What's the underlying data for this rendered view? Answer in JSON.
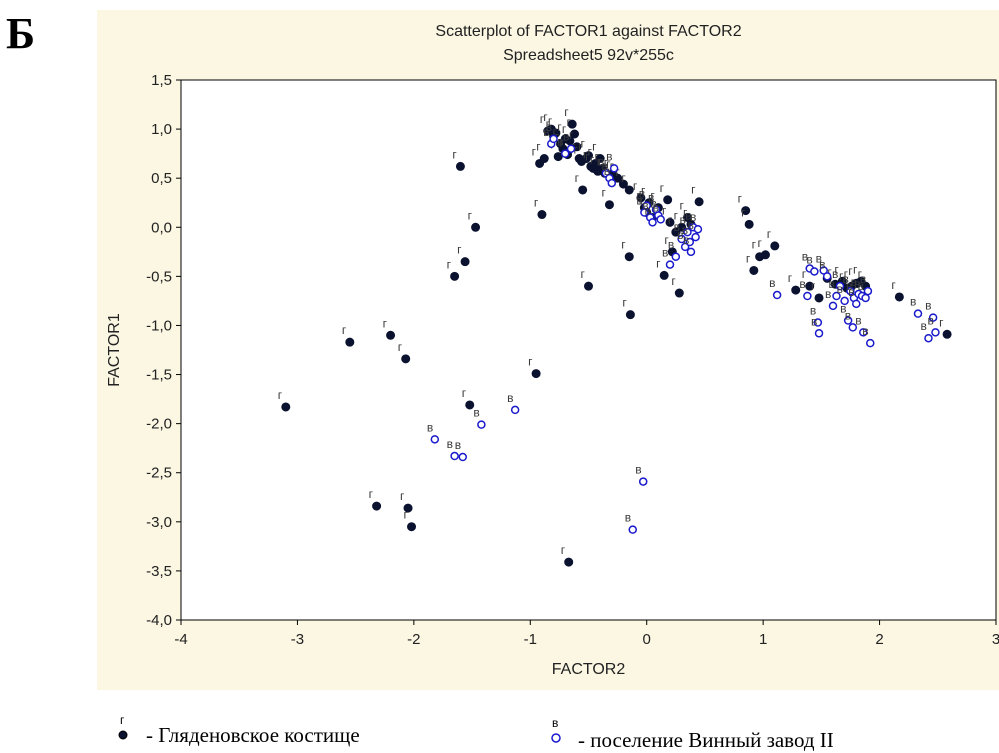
{
  "panel_label": "Б",
  "chart_data": {
    "type": "scatter",
    "title": "Scatterplot of FACTOR1 against FACTOR2",
    "subtitle": "Spreadsheet5 92v*255c",
    "xlabel": "FACTOR2",
    "ylabel": "FACTOR1",
    "xlim": [
      -4,
      3
    ],
    "ylim": [
      -4,
      1.5
    ],
    "xticks": [
      -4,
      -3,
      -2,
      -1,
      0,
      1,
      2,
      3
    ],
    "yticks": [
      -4,
      -3.5,
      -3,
      -2.5,
      -2,
      -1.5,
      -1,
      -0.5,
      0,
      0.5,
      1,
      1.5
    ],
    "x_tick_labels": [
      "-4",
      "-3",
      "-2",
      "-1",
      "0",
      "1",
      "2",
      "3"
    ],
    "y_tick_labels": [
      "-4,0",
      "-3,5",
      "-3,0",
      "-2,5",
      "-2,0",
      "-1,5",
      "-1,0",
      "-0,5",
      "0,0",
      "0,5",
      "1,0",
      "1,5"
    ],
    "grid": false,
    "colors": {
      "background": "#fbf7e3",
      "plot_background": "#ffffff",
      "series_g": "#0a1230",
      "series_v": "#1a1acc",
      "label": "#3a3a3a"
    },
    "series": [
      {
        "name": "- Гляденовское костище",
        "mark_label": "г",
        "marker": "filled-circle",
        "points": [
          [
            -3.1,
            -1.83
          ],
          [
            -2.55,
            -1.17
          ],
          [
            -2.2,
            -1.1
          ],
          [
            -2.07,
            -1.34
          ],
          [
            -2.32,
            -2.84
          ],
          [
            -2.05,
            -2.86
          ],
          [
            -2.02,
            -3.05
          ],
          [
            -1.6,
            0.62
          ],
          [
            -1.47,
            0.0
          ],
          [
            -1.56,
            -0.35
          ],
          [
            -1.65,
            -0.5
          ],
          [
            -1.52,
            -1.81
          ],
          [
            -0.95,
            -1.49
          ],
          [
            -0.67,
            -3.41
          ],
          [
            -0.9,
            0.13
          ],
          [
            -0.92,
            0.65
          ],
          [
            -0.88,
            0.7
          ],
          [
            -0.85,
            0.98
          ],
          [
            -0.82,
            1.0
          ],
          [
            -0.8,
            0.93
          ],
          [
            -0.78,
            0.96
          ],
          [
            -0.76,
            0.72
          ],
          [
            -0.74,
            0.85
          ],
          [
            -0.72,
            0.8
          ],
          [
            -0.7,
            0.9
          ],
          [
            -0.68,
            0.74
          ],
          [
            -0.66,
            0.88
          ],
          [
            -0.64,
            1.05
          ],
          [
            -0.62,
            0.95
          ],
          [
            -0.6,
            0.82
          ],
          [
            -0.58,
            0.7
          ],
          [
            -0.56,
            0.67
          ],
          [
            -0.55,
            0.38
          ],
          [
            -0.52,
            0.7
          ],
          [
            -0.5,
            0.73
          ],
          [
            -0.48,
            0.62
          ],
          [
            -0.46,
            0.6
          ],
          [
            -0.44,
            0.65
          ],
          [
            -0.42,
            0.57
          ],
          [
            -0.4,
            0.7
          ],
          [
            -0.38,
            0.6
          ],
          [
            -0.36,
            0.55
          ],
          [
            -0.32,
            0.23
          ],
          [
            -0.3,
            0.54
          ],
          [
            -0.28,
            0.52
          ],
          [
            -0.25,
            0.5
          ],
          [
            -0.2,
            0.44
          ],
          [
            -0.15,
            0.38
          ],
          [
            -0.5,
            -0.6
          ],
          [
            -0.15,
            -0.3
          ],
          [
            -0.14,
            -0.89
          ],
          [
            -0.05,
            0.3
          ],
          [
            -0.02,
            0.2
          ],
          [
            0.0,
            0.15
          ],
          [
            0.02,
            0.25
          ],
          [
            0.05,
            0.1
          ],
          [
            0.1,
            0.2
          ],
          [
            0.15,
            -0.49
          ],
          [
            0.18,
            0.28
          ],
          [
            0.2,
            0.05
          ],
          [
            0.22,
            -0.25
          ],
          [
            0.25,
            -0.05
          ],
          [
            0.28,
            -0.67
          ],
          [
            0.3,
            0.0
          ],
          [
            0.35,
            0.1
          ],
          [
            0.38,
            0.03
          ],
          [
            0.45,
            0.26
          ],
          [
            0.85,
            0.17
          ],
          [
            0.88,
            0.03
          ],
          [
            0.92,
            -0.44
          ],
          [
            0.97,
            -0.3
          ],
          [
            1.02,
            -0.28
          ],
          [
            1.1,
            -0.19
          ],
          [
            1.28,
            -0.64
          ],
          [
            1.4,
            -0.6
          ],
          [
            1.48,
            -0.72
          ],
          [
            1.55,
            -0.52
          ],
          [
            1.62,
            -0.58
          ],
          [
            1.68,
            -0.55
          ],
          [
            1.72,
            -0.62
          ],
          [
            1.76,
            -0.6
          ],
          [
            1.8,
            -0.57
          ],
          [
            1.84,
            -0.55
          ],
          [
            1.88,
            -0.6
          ],
          [
            2.17,
            -0.71
          ],
          [
            2.58,
            -1.09
          ]
        ]
      },
      {
        "name": "- поселение Винный завод II",
        "mark_label": "в",
        "marker": "open-circle",
        "points": [
          [
            -1.82,
            -2.16
          ],
          [
            -1.65,
            -2.33
          ],
          [
            -1.58,
            -2.34
          ],
          [
            -1.42,
            -2.01
          ],
          [
            -1.13,
            -1.86
          ],
          [
            -0.12,
            -3.08
          ],
          [
            -0.03,
            -2.59
          ],
          [
            -0.82,
            0.85
          ],
          [
            -0.8,
            0.9
          ],
          [
            -0.7,
            0.75
          ],
          [
            -0.65,
            0.8
          ],
          [
            -0.35,
            0.55
          ],
          [
            -0.32,
            0.5
          ],
          [
            -0.3,
            0.45
          ],
          [
            -0.28,
            0.6
          ],
          [
            -0.02,
            0.15
          ],
          [
            0.0,
            0.22
          ],
          [
            0.03,
            0.1
          ],
          [
            0.05,
            0.05
          ],
          [
            0.08,
            0.18
          ],
          [
            0.1,
            0.12
          ],
          [
            0.12,
            0.08
          ],
          [
            0.2,
            -0.38
          ],
          [
            0.25,
            -0.3
          ],
          [
            0.3,
            -0.12
          ],
          [
            0.33,
            -0.2
          ],
          [
            0.35,
            -0.05
          ],
          [
            0.37,
            -0.15
          ],
          [
            0.38,
            -0.25
          ],
          [
            0.4,
            0.0
          ],
          [
            0.42,
            -0.1
          ],
          [
            0.44,
            -0.02
          ],
          [
            1.12,
            -0.69
          ],
          [
            1.38,
            -0.7
          ],
          [
            1.4,
            -0.42
          ],
          [
            1.44,
            -0.45
          ],
          [
            1.47,
            -0.97
          ],
          [
            1.48,
            -1.08
          ],
          [
            1.52,
            -0.44
          ],
          [
            1.55,
            -0.5
          ],
          [
            1.6,
            -0.8
          ],
          [
            1.63,
            -0.7
          ],
          [
            1.66,
            -0.6
          ],
          [
            1.7,
            -0.75
          ],
          [
            1.73,
            -0.95
          ],
          [
            1.75,
            -0.65
          ],
          [
            1.77,
            -1.02
          ],
          [
            1.78,
            -0.72
          ],
          [
            1.8,
            -0.78
          ],
          [
            1.82,
            -0.68
          ],
          [
            1.85,
            -0.7
          ],
          [
            1.86,
            -1.07
          ],
          [
            1.88,
            -0.72
          ],
          [
            1.9,
            -0.65
          ],
          [
            1.92,
            -1.18
          ],
          [
            2.33,
            -0.88
          ],
          [
            2.42,
            -1.13
          ],
          [
            2.46,
            -0.92
          ],
          [
            2.48,
            -1.07
          ]
        ]
      }
    ],
    "legend": {
      "placement": "bottom"
    }
  }
}
